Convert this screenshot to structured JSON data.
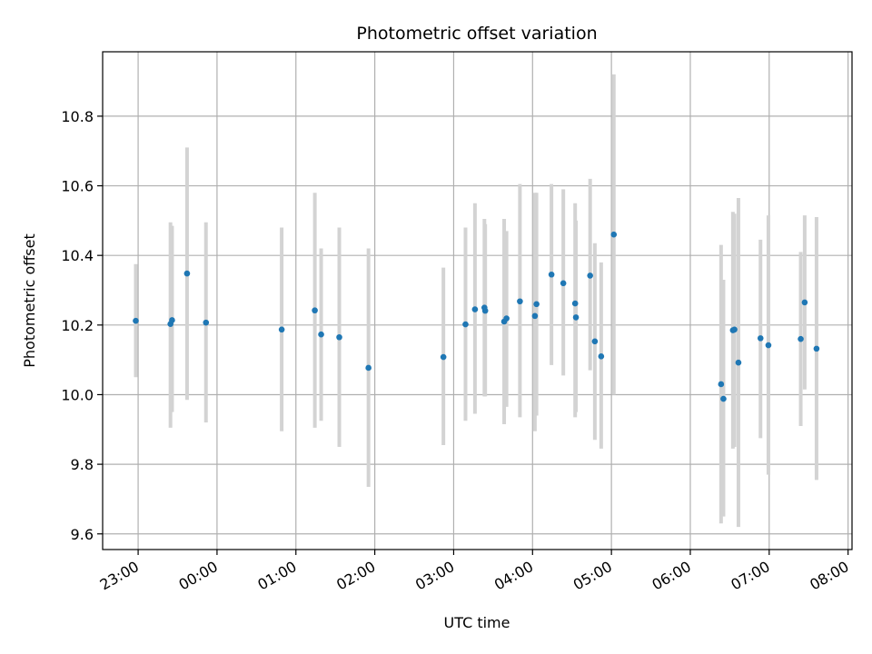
{
  "chart_data": {
    "type": "scatter",
    "title": "Photometric offset variation",
    "xlabel": "UTC time",
    "ylabel": "Photometric offset",
    "x_unit": "UTC time (hours; values past 24 are after midnight)",
    "xlim": [
      22.55,
      32.05
    ],
    "ylim": [
      9.555,
      10.985
    ],
    "xticks": [
      {
        "value": 23,
        "label": "23:00"
      },
      {
        "value": 24,
        "label": "00:00"
      },
      {
        "value": 25,
        "label": "01:00"
      },
      {
        "value": 26,
        "label": "02:00"
      },
      {
        "value": 27,
        "label": "03:00"
      },
      {
        "value": 28,
        "label": "04:00"
      },
      {
        "value": 29,
        "label": "05:00"
      },
      {
        "value": 30,
        "label": "06:00"
      },
      {
        "value": 31,
        "label": "07:00"
      },
      {
        "value": 32,
        "label": "08:00"
      }
    ],
    "yticks": [
      {
        "value": 9.6,
        "label": "9.6"
      },
      {
        "value": 9.8,
        "label": "9.8"
      },
      {
        "value": 10.0,
        "label": "10.0"
      },
      {
        "value": 10.2,
        "label": "10.2"
      },
      {
        "value": 10.4,
        "label": "10.4"
      },
      {
        "value": 10.6,
        "label": "10.6"
      },
      {
        "value": 10.8,
        "label": "10.8"
      }
    ],
    "grid": true,
    "marker_color": "#1f77b4",
    "errorbar_color": "#d3d3d3",
    "points": [
      {
        "x": 22.97,
        "y": 10.212,
        "err_low": 10.05,
        "err_high": 10.375
      },
      {
        "x": 23.41,
        "y": 10.203,
        "err_low": 9.905,
        "err_high": 10.495
      },
      {
        "x": 23.43,
        "y": 10.214,
        "err_low": 9.95,
        "err_high": 10.485
      },
      {
        "x": 23.62,
        "y": 10.348,
        "err_low": 9.985,
        "err_high": 10.71
      },
      {
        "x": 23.86,
        "y": 10.207,
        "err_low": 9.92,
        "err_high": 10.495
      },
      {
        "x": 24.82,
        "y": 10.187,
        "err_low": 9.895,
        "err_high": 10.48
      },
      {
        "x": 25.24,
        "y": 10.242,
        "err_low": 9.905,
        "err_high": 10.58
      },
      {
        "x": 25.32,
        "y": 10.173,
        "err_low": 9.925,
        "err_high": 10.42
      },
      {
        "x": 25.55,
        "y": 10.165,
        "err_low": 9.85,
        "err_high": 10.48
      },
      {
        "x": 25.92,
        "y": 10.077,
        "err_low": 9.735,
        "err_high": 10.42
      },
      {
        "x": 26.87,
        "y": 10.108,
        "err_low": 9.855,
        "err_high": 10.365
      },
      {
        "x": 27.15,
        "y": 10.202,
        "err_low": 9.925,
        "err_high": 10.48
      },
      {
        "x": 27.27,
        "y": 10.245,
        "err_low": 9.945,
        "err_high": 10.55
      },
      {
        "x": 27.39,
        "y": 10.25,
        "err_low": 9.995,
        "err_high": 10.505
      },
      {
        "x": 27.4,
        "y": 10.241,
        "err_low": 9.995,
        "err_high": 10.49
      },
      {
        "x": 27.64,
        "y": 10.21,
        "err_low": 9.915,
        "err_high": 10.505
      },
      {
        "x": 27.67,
        "y": 10.219,
        "err_low": 9.965,
        "err_high": 10.47
      },
      {
        "x": 27.84,
        "y": 10.268,
        "err_low": 9.935,
        "err_high": 10.605
      },
      {
        "x": 28.03,
        "y": 10.226,
        "err_low": 9.895,
        "err_high": 10.58
      },
      {
        "x": 28.05,
        "y": 10.26,
        "err_low": 9.94,
        "err_high": 10.58
      },
      {
        "x": 28.24,
        "y": 10.345,
        "err_low": 10.085,
        "err_high": 10.605
      },
      {
        "x": 28.39,
        "y": 10.32,
        "err_low": 10.055,
        "err_high": 10.59
      },
      {
        "x": 28.54,
        "y": 10.262,
        "err_low": 9.935,
        "err_high": 10.55
      },
      {
        "x": 28.55,
        "y": 10.222,
        "err_low": 9.95,
        "err_high": 10.5
      },
      {
        "x": 28.73,
        "y": 10.342,
        "err_low": 10.07,
        "err_high": 10.62
      },
      {
        "x": 28.79,
        "y": 10.153,
        "err_low": 9.87,
        "err_high": 10.435
      },
      {
        "x": 28.87,
        "y": 10.11,
        "err_low": 9.845,
        "err_high": 10.38
      },
      {
        "x": 29.03,
        "y": 10.46,
        "err_low": 10.0,
        "err_high": 10.92
      },
      {
        "x": 30.39,
        "y": 10.03,
        "err_low": 9.63,
        "err_high": 10.43
      },
      {
        "x": 30.42,
        "y": 9.988,
        "err_low": 9.65,
        "err_high": 10.33
      },
      {
        "x": 30.54,
        "y": 10.185,
        "err_low": 9.845,
        "err_high": 10.525
      },
      {
        "x": 30.56,
        "y": 10.187,
        "err_low": 9.85,
        "err_high": 10.52
      },
      {
        "x": 30.61,
        "y": 10.092,
        "err_low": 9.62,
        "err_high": 10.565
      },
      {
        "x": 30.89,
        "y": 10.162,
        "err_low": 9.875,
        "err_high": 10.445
      },
      {
        "x": 30.99,
        "y": 10.142,
        "err_low": 9.77,
        "err_high": 10.515
      },
      {
        "x": 31.4,
        "y": 10.16,
        "err_low": 9.91,
        "err_high": 10.41
      },
      {
        "x": 31.45,
        "y": 10.265,
        "err_low": 10.015,
        "err_high": 10.515
      },
      {
        "x": 31.6,
        "y": 10.132,
        "err_low": 9.755,
        "err_high": 10.51
      }
    ]
  }
}
